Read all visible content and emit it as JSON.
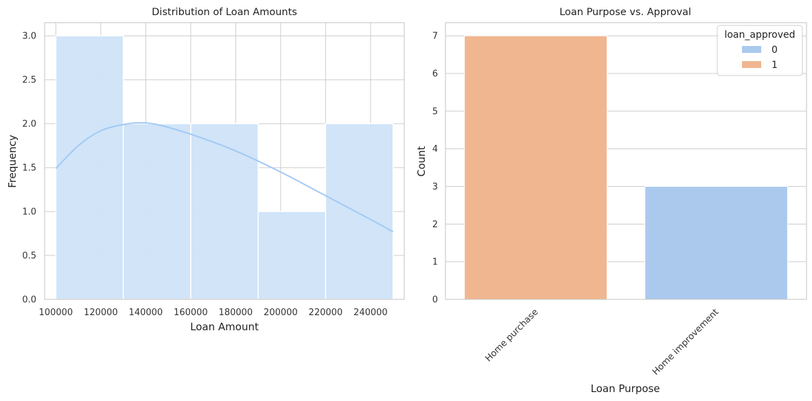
{
  "chart_data": [
    {
      "type": "histogram",
      "title": "Distribution of Loan Amounts",
      "xlabel": "Loan Amount",
      "ylabel": "Frequency",
      "xlim": [
        95000,
        255000
      ],
      "ylim": [
        0,
        3.15
      ],
      "xticks": [
        100000,
        120000,
        140000,
        160000,
        180000,
        200000,
        220000,
        240000
      ],
      "yticks": [
        "0.0",
        "0.5",
        "1.0",
        "1.5",
        "2.0",
        "2.5",
        "3.0"
      ],
      "bins": [
        {
          "start": 100000,
          "end": 130000,
          "count": 3
        },
        {
          "start": 130000,
          "end": 160000,
          "count": 2
        },
        {
          "start": 160000,
          "end": 190000,
          "count": 2
        },
        {
          "start": 190000,
          "end": 220000,
          "count": 1
        },
        {
          "start": 220000,
          "end": 250000,
          "count": 2
        }
      ],
      "kde": {
        "x": [
          100000,
          110000,
          120000,
          130000,
          137000,
          145000,
          160000,
          180000,
          200000,
          220000,
          240000,
          250000
        ],
        "y": [
          1.49,
          1.75,
          1.92,
          1.99,
          2.01,
          1.99,
          1.88,
          1.69,
          1.45,
          1.18,
          0.91,
          0.77
        ]
      },
      "grid": true,
      "colors": {
        "bar": "#cfe3f8",
        "kde": "#a1c9f4"
      }
    },
    {
      "type": "bar",
      "title": "Loan Purpose vs. Approval",
      "xlabel": "Loan Purpose",
      "ylabel": "Count",
      "categories": [
        "Home purchase",
        "Home improvement"
      ],
      "ylim": [
        0,
        7.35
      ],
      "yticks": [
        0,
        1,
        2,
        3,
        4,
        5,
        6,
        7
      ],
      "bars": [
        {
          "category": "Home purchase",
          "hue": "1",
          "value": 7
        },
        {
          "category": "Home improvement",
          "hue": "0",
          "value": 3
        }
      ],
      "legend": {
        "title": "loan_approved",
        "placement": "top-right",
        "entries": [
          {
            "label": "0",
            "color": "#abc9ed"
          },
          {
            "label": "1",
            "color": "#f0b68f"
          }
        ]
      },
      "grid": true
    }
  ]
}
